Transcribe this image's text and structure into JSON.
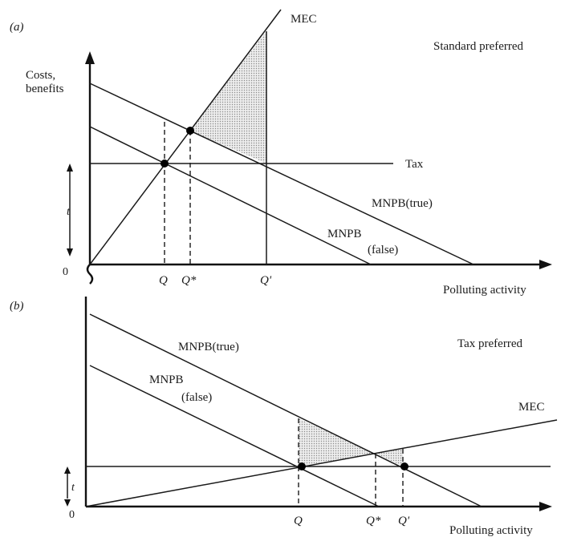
{
  "panel_a": {
    "label": "(a)",
    "title": "Standard preferred",
    "y_axis_label": [
      "Costs,",
      "benefits"
    ],
    "origin": "0",
    "x_axis_label": "Polluting activity",
    "curves": {
      "mec": "MEC",
      "tax": "Tax",
      "mnpb_true": "MNPB(true)",
      "mnpb_false": [
        "MNPB",
        "(false)"
      ]
    },
    "x_ticks": [
      "Q",
      "Q*",
      "Q'"
    ],
    "t_marker": "t"
  },
  "panel_b": {
    "label": "(b)",
    "title": "Tax preferred",
    "origin": "0",
    "x_axis_label": "Polluting activity",
    "curves": {
      "mec": "MEC",
      "mnpb_true": "MNPB(true)",
      "mnpb_false": [
        "MNPB",
        "(false)"
      ]
    },
    "x_ticks": [
      "Q",
      "Q*",
      "Q'"
    ],
    "t_marker": "t"
  },
  "colors": {
    "ink": "#1a1a1a",
    "shade": "#d9d9d9"
  }
}
